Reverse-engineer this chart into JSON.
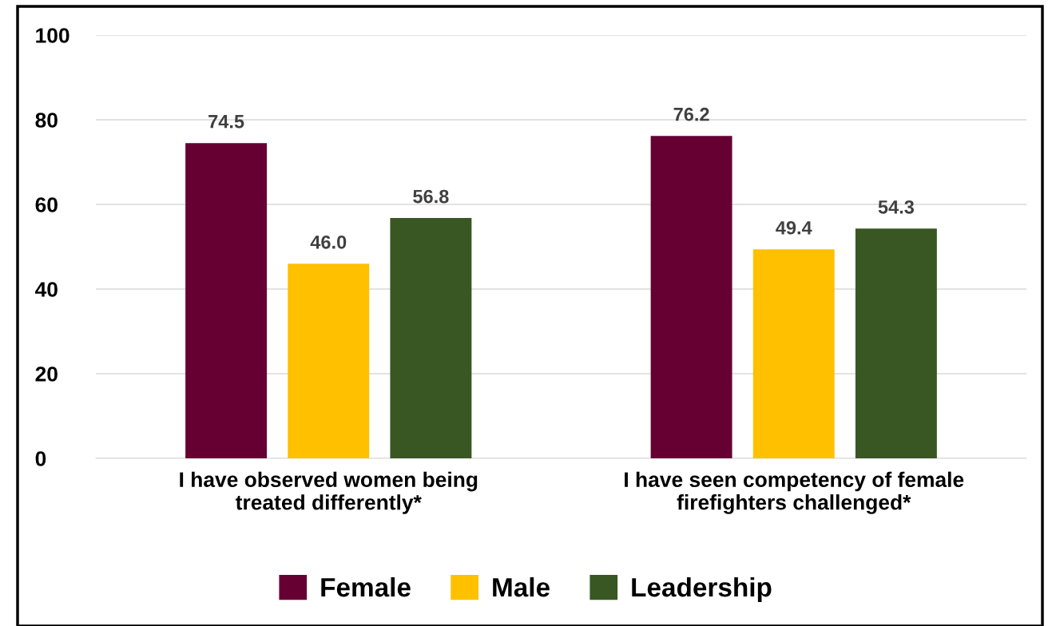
{
  "chart_data": {
    "type": "bar",
    "categories": [
      "I have observed women being\ntreated differently*",
      "I have seen competency of female\nfirefighters challenged*"
    ],
    "series": [
      {
        "name": "Female",
        "color": "#660033",
        "values": [
          74.5,
          76.2
        ]
      },
      {
        "name": "Male",
        "color": "#ffc000",
        "values": [
          46.0,
          49.4
        ]
      },
      {
        "name": "Leadership",
        "color": "#385723",
        "values": [
          56.8,
          54.3
        ]
      }
    ],
    "value_labels": [
      [
        "74.5",
        "76.2"
      ],
      [
        "46.0",
        "49.4"
      ],
      [
        "56.8",
        "54.3"
      ]
    ],
    "ylim": [
      0,
      100
    ],
    "yticks": [
      0,
      20,
      40,
      60,
      80,
      100
    ],
    "grid": "y",
    "legend": "bottom"
  }
}
